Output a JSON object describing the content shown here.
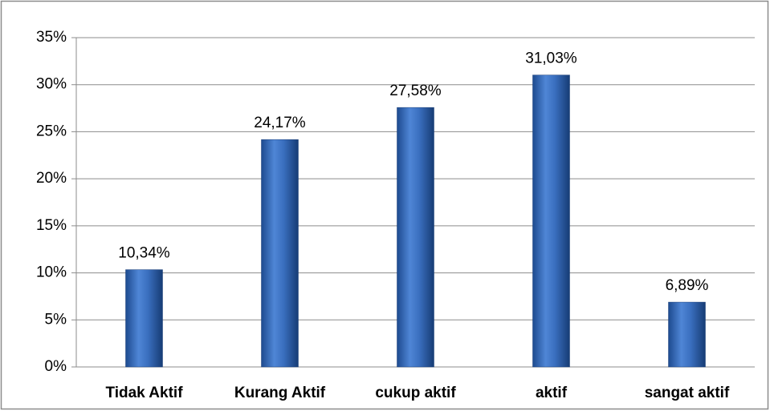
{
  "chart_data": {
    "type": "bar",
    "categories": [
      "Tidak Aktif",
      "Kurang Aktif",
      "cukup aktif",
      "aktif",
      "sangat aktif"
    ],
    "values": [
      10.34,
      24.17,
      27.58,
      31.03,
      6.89
    ],
    "value_labels": [
      "10,34%",
      "24,17%",
      "27,58%",
      "31,03%",
      "6,89%"
    ],
    "color": "#3a6fbf",
    "ylim": [
      0,
      35
    ],
    "yticks": [
      {
        "value": 0,
        "label": "0%"
      },
      {
        "value": 5,
        "label": "5%"
      },
      {
        "value": 10,
        "label": "10%"
      },
      {
        "value": 15,
        "label": "15%"
      },
      {
        "value": 20,
        "label": "20%"
      },
      {
        "value": 25,
        "label": "25%"
      },
      {
        "value": 30,
        "label": "30%"
      },
      {
        "value": 35,
        "label": "35%"
      }
    ],
    "grid": true
  }
}
